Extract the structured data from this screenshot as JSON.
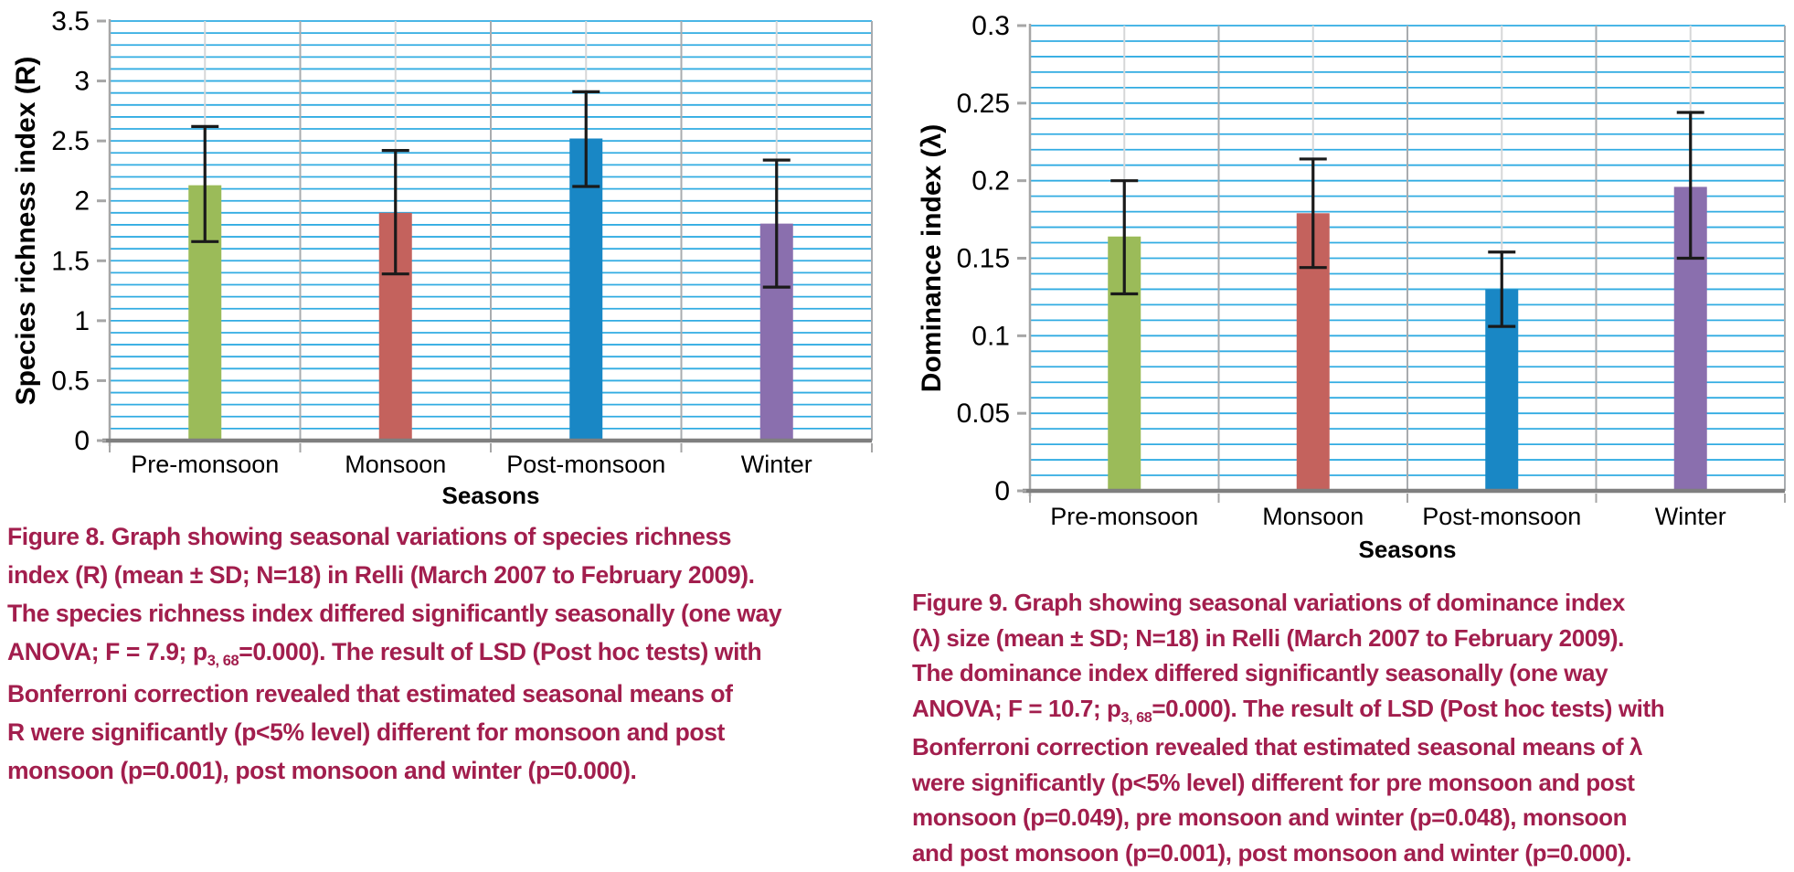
{
  "colors": {
    "caption_text": "#A21E4D",
    "gridline_cyan": "#31ACE2",
    "grid_vertical_boundary": "#A9ACAF",
    "grid_vertical_center": "#D6D7D8",
    "axis_line": "#A6A6A6",
    "axis_bottom": "#7F7F7F",
    "error_bar": "#1A1A1A",
    "tick_text": "#000000"
  },
  "chart_data": [
    {
      "id": "figure8",
      "type": "bar",
      "title": "",
      "xlabel": "Seasons",
      "ylabel": "Species richness index (R)",
      "categories": [
        "Pre-monsoon",
        "Monsoon",
        "Post-monsoon",
        "Winter"
      ],
      "values": [
        2.13,
        1.9,
        2.52,
        1.81
      ],
      "errors_upper": [
        2.62,
        2.42,
        2.91,
        2.34
      ],
      "errors_lower": [
        1.66,
        1.39,
        2.12,
        1.28
      ],
      "bar_colors": [
        "#9BBB59",
        "#C4625D",
        "#1987C5",
        "#8A6FAE"
      ],
      "ylim": [
        0,
        3.5
      ],
      "ytick_values": [
        0,
        0.5,
        1,
        1.5,
        2,
        2.5,
        3,
        3.5
      ],
      "ytick_labels": [
        "0",
        "0.5",
        "1",
        "1.5",
        "2",
        "2.5",
        "3",
        "3.5"
      ],
      "minor_step": 0.1,
      "grid": true,
      "legend": "none"
    },
    {
      "id": "figure9",
      "type": "bar",
      "title": "",
      "xlabel": "Seasons",
      "ylabel": "Dominance index (λ)",
      "categories": [
        "Pre-monsoon",
        "Monsoon",
        "Post-monsoon",
        "Winter"
      ],
      "values": [
        0.164,
        0.179,
        0.13,
        0.196
      ],
      "errors_upper": [
        0.2,
        0.214,
        0.154,
        0.244
      ],
      "errors_lower": [
        0.127,
        0.144,
        0.106,
        0.15
      ],
      "bar_colors": [
        "#9BBB59",
        "#C4625D",
        "#1987C5",
        "#8A6FAE"
      ],
      "ylim": [
        0,
        0.3
      ],
      "ytick_values": [
        0,
        0.05,
        0.1,
        0.15,
        0.2,
        0.25,
        0.3
      ],
      "ytick_labels": [
        "0",
        "0.05",
        "0.1",
        "0.15",
        "0.2",
        "0.25",
        "0.3"
      ],
      "minor_step": 0.01,
      "grid": true,
      "legend": "none"
    }
  ],
  "captions": [
    {
      "id": "figure8",
      "lines": [
        [
          {
            "t": "Figure 8. Graph showing seasonal variations of species richness"
          }
        ],
        [
          {
            "t": "index (R) (mean ± SD; N=18) in Relli (March 2007 to February 2009)."
          }
        ],
        [
          {
            "t": "The species richness index differed significantly seasonally (one way"
          }
        ],
        [
          {
            "t": "ANOVA; F = 7.9; p"
          },
          {
            "t": "3, 68",
            "sub": true
          },
          {
            "t": "=0.000). The result of LSD (Post hoc tests) with"
          }
        ],
        [
          {
            "t": "Bonferroni correction revealed that estimated seasonal means of"
          }
        ],
        [
          {
            "t": "R were significantly (p<5% level) different for monsoon and post"
          }
        ],
        [
          {
            "t": "monsoon (p=0.001), post monsoon and winter (p=0.000)."
          }
        ]
      ]
    },
    {
      "id": "figure9",
      "lines": [
        [
          {
            "t": "Figure 9. Graph showing seasonal variations of dominance index"
          }
        ],
        [
          {
            "t": "(λ) size (mean ± SD; N=18) in Relli (March 2007 to February 2009)."
          }
        ],
        [
          {
            "t": "The dominance index differed significantly seasonally (one way"
          }
        ],
        [
          {
            "t": "ANOVA; F = 10.7; p"
          },
          {
            "t": "3, 68",
            "sub": true
          },
          {
            "t": "=0.000). The result of LSD (Post hoc tests) with"
          }
        ],
        [
          {
            "t": "Bonferroni correction revealed that estimated seasonal means of λ"
          }
        ],
        [
          {
            "t": "were significantly (p<5% level) different for pre monsoon and post"
          }
        ],
        [
          {
            "t": "monsoon (p=0.049), pre monsoon and winter (p=0.048), monsoon"
          }
        ],
        [
          {
            "t": "and post monsoon (p=0.001), post monsoon and winter (p=0.000)."
          }
        ]
      ]
    }
  ]
}
